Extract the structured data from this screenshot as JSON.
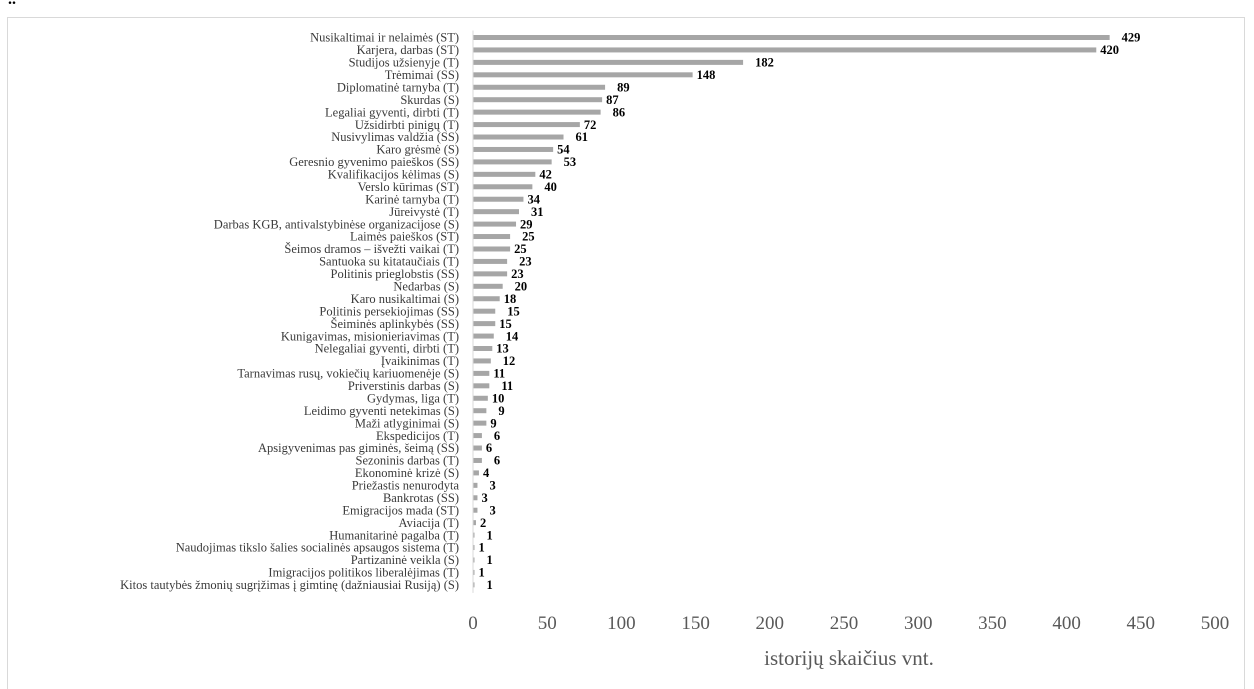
{
  "caption": "“..”",
  "chart_data": {
    "type": "bar",
    "orientation": "horizontal",
    "categories": [
      "Nusikaltimai ir nelaimės (ST)",
      "Karjera, darbas (ST)",
      "Studijos užsienyje (T)",
      "Trėmimai (SS)",
      "Diplomatinė tarnyba (T)",
      "Skurdas (S)",
      "Legaliai gyventi, dirbti (T)",
      "Užsidirbti pinigų (T)",
      "Nusivylimas valdžia (SS)",
      "Karo grėsmė (S)",
      "Geresnio gyvenimo paieškos (SS)",
      "Kvalifikacijos kėlimas (S)",
      "Verslo kūrimas (ST)",
      "Karinė tarnyba (T)",
      "Jūreivystė (T)",
      "Darbas KGB, antivalstybinėse organizacijose (S)",
      "Laimės paieškos (ST)",
      "Šeimos dramos – išvežti vaikai (T)",
      "Santuoka su kitataučiais (T)",
      "Politinis prieglobstis (SS)",
      "Nedarbas (S)",
      "Karo nusikaltimai (S)",
      "Politinis persekiojimas (SS)",
      "Šeiminės aplinkybės (SS)",
      "Kunigavimas, misionieriavimas (T)",
      "Nelegaliai gyventi, dirbti (T)",
      "Įvaikinimas (T)",
      "Tarnavimas rusų, vokiečių kariuomenėje (S)",
      "Priverstinis darbas (S)",
      "Gydymas, liga (T)",
      "Leidimo gyventi netekimas (S)",
      "Maži atlyginimai (S)",
      "Ekspedicijos (T)",
      "Apsigyvenimas pas giminės, šeimą (SS)",
      "Sezoninis darbas (T)",
      "Ekonominė krizė (S)",
      "Priežastis nenurodyta",
      "Bankrotas (SS)",
      "Emigracijos mada (ST)",
      "Aviacija (T)",
      "Humanitarinė pagalba (T)",
      "Naudojimas tikslo šalies socialinės apsaugos sistema (T)",
      "Partizaninė veikla (S)",
      "Imigracijos politikos liberalėjimas (T)",
      "Kitos tautybės žmonių sugrįžimas į gimtinę (dažniausiai Rusiją) (S)"
    ],
    "values": [
      429,
      420,
      182,
      148,
      89,
      87,
      86,
      72,
      61,
      54,
      53,
      42,
      40,
      34,
      31,
      29,
      25,
      25,
      23,
      23,
      20,
      18,
      15,
      15,
      14,
      13,
      12,
      11,
      11,
      10,
      9,
      9,
      6,
      6,
      6,
      4,
      3,
      3,
      3,
      2,
      1,
      1,
      1,
      1,
      1
    ],
    "xlim": [
      0,
      500
    ],
    "xticks": [
      0,
      50,
      100,
      150,
      200,
      250,
      300,
      350,
      400,
      450,
      500
    ],
    "xlabel": "istorijų skaičius vnt.",
    "ylabel": "",
    "title": "",
    "bar_color": "#a6a6a6",
    "grid": false,
    "legend": "none"
  }
}
